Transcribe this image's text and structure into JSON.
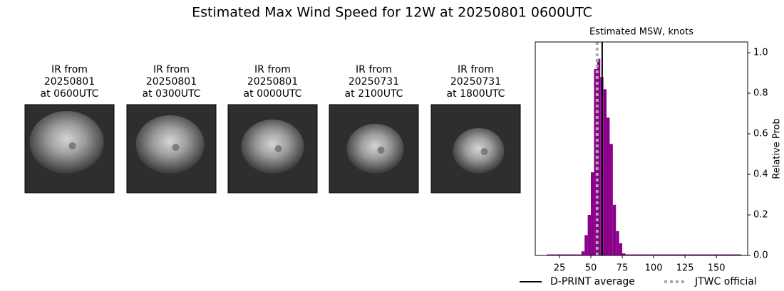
{
  "title": "Estimated Max Wind Speed for 12W at 20250801 0600UTC",
  "panels": [
    {
      "caption": [
        "IR from",
        "20250801",
        "at 0600UTC"
      ]
    },
    {
      "caption": [
        "IR from",
        "20250801",
        "at 0300UTC"
      ]
    },
    {
      "caption": [
        "IR from",
        "20250801",
        "at 0000UTC"
      ]
    },
    {
      "caption": [
        "IR from",
        "20250731",
        "at 2100UTC"
      ]
    },
    {
      "caption": [
        "IR from",
        "20250731",
        "at 1800UTC"
      ]
    }
  ],
  "chart_data": {
    "type": "histogram",
    "title": "Estimated MSW, knots",
    "y_label": "Relative Prob",
    "bins": [
      15,
      42.5,
      45,
      47.5,
      50,
      52.5,
      55,
      57.5,
      60,
      62.5,
      65,
      67.5,
      70,
      72.5,
      75,
      77.5,
      170
    ],
    "values": [
      0.005,
      0.02,
      0.1,
      0.2,
      0.41,
      0.92,
      0.97,
      0.88,
      0.82,
      0.68,
      0.55,
      0.25,
      0.12,
      0.06,
      0.01,
      0.005
    ],
    "color": "#8b008b",
    "xlim": [
      5.7,
      174.9
    ],
    "xticks": [
      25,
      50,
      75,
      100,
      125,
      150
    ],
    "ylim": [
      0,
      1.053
    ],
    "yticks": [
      {
        "value": 0,
        "label": "0.0"
      },
      0.2,
      0.4,
      0.6,
      0.8,
      {
        "value": 1,
        "label": "1.0"
      }
    ],
    "reference_lines": [
      {
        "name": "D-PRINT average",
        "value": 59,
        "color": "#000000",
        "style": "solid"
      },
      {
        "name": "JTWC official",
        "value": 55,
        "color": "#aaaaaa",
        "style": "dotted"
      }
    ]
  }
}
